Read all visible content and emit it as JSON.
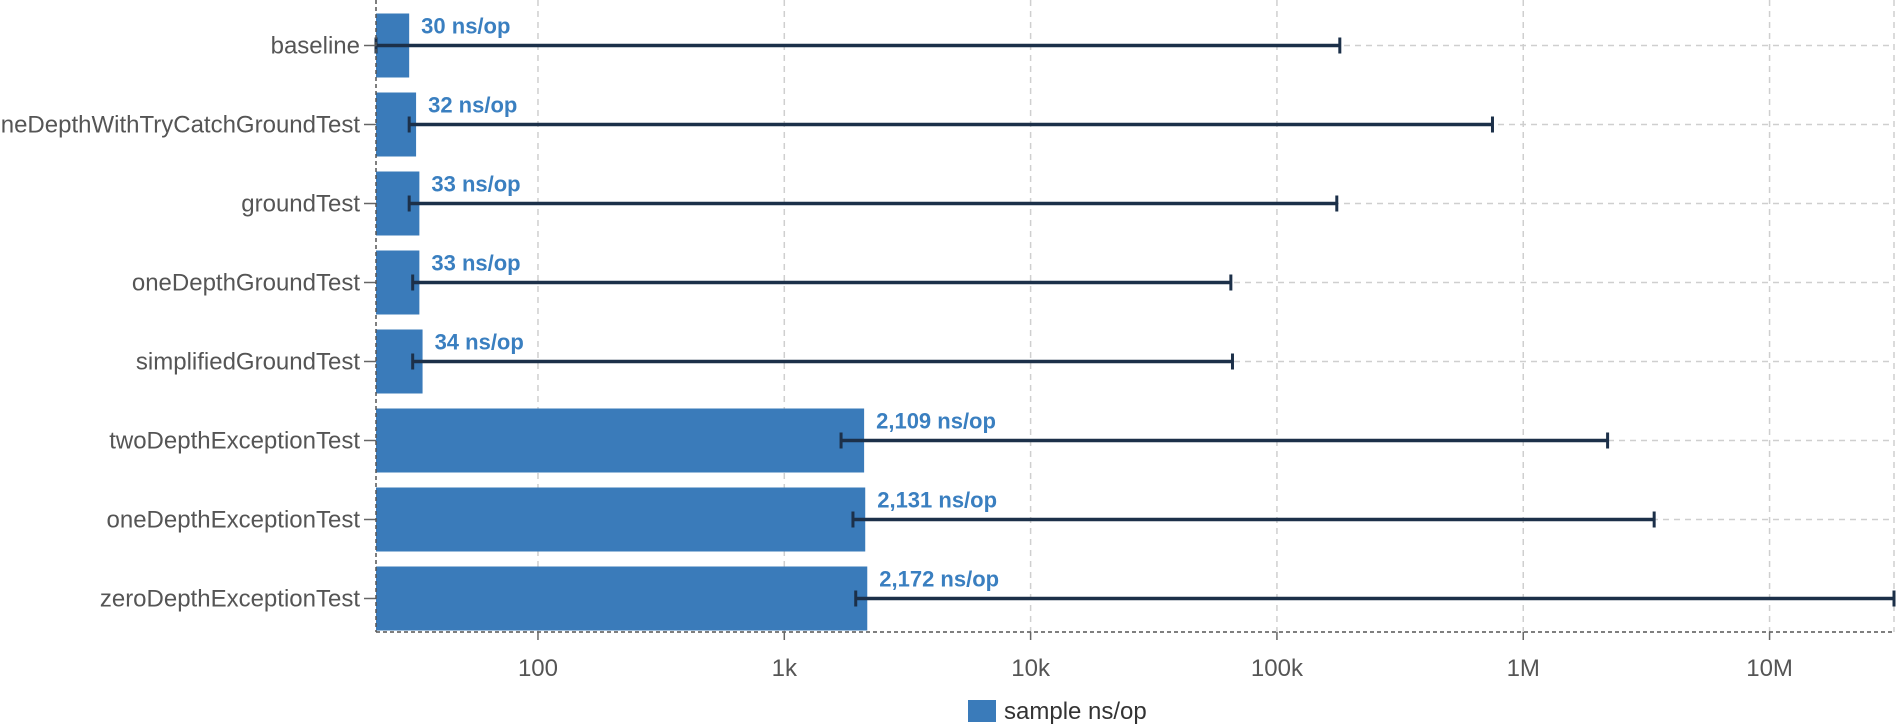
{
  "chart_data": {
    "type": "bar",
    "orientation": "horizontal",
    "x_scale": "log",
    "xlim": [
      22,
      32000000
    ],
    "grid": true,
    "legend_placement": "bottom",
    "bar_color": "#3a7bba",
    "error_bar_color": "#1c3049",
    "label_color": "#3a7fc0",
    "categories": [
      "baseline",
      "oneDepthWithTryCatchGroundTest",
      "groundTest",
      "oneDepthGroundTest",
      "simplifiedGroundTest",
      "twoDepthExceptionTest",
      "oneDepthExceptionTest",
      "zeroDepthExceptionTest"
    ],
    "series": [
      {
        "name": "sample ns/op",
        "values": [
          30,
          32,
          33,
          33,
          34,
          2109,
          2131,
          2172
        ],
        "labels": [
          "30 ns/op",
          "32 ns/op",
          "33 ns/op",
          "33 ns/op",
          "34 ns/op",
          "2,109 ns/op",
          "2,131 ns/op",
          "2,172 ns/op"
        ],
        "error_low": [
          22,
          30,
          30,
          31,
          31,
          1700,
          1900,
          1950
        ],
        "error_high": [
          180000,
          750000,
          175000,
          65000,
          66000,
          2200000,
          3400000,
          32000000
        ]
      }
    ],
    "x_ticks": [
      {
        "value": 100,
        "label": "100"
      },
      {
        "value": 1000,
        "label": "1k"
      },
      {
        "value": 10000,
        "label": "10k"
      },
      {
        "value": 100000,
        "label": "100k"
      },
      {
        "value": 1000000,
        "label": "1M"
      },
      {
        "value": 10000000,
        "label": "10M"
      }
    ]
  }
}
